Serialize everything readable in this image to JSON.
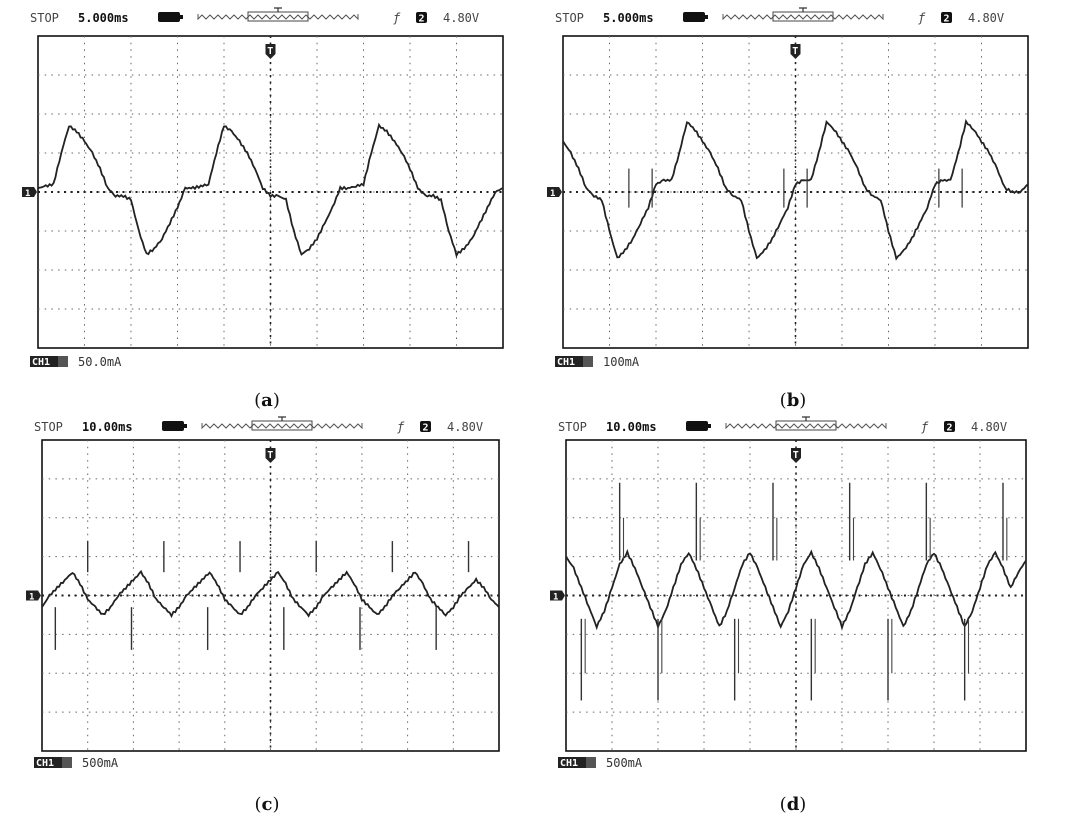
{
  "panels": [
    {
      "id": "a",
      "status": "STOP",
      "timebase": "5.000ms",
      "edge_symbol": "ƒ",
      "trigger_channel": "2",
      "trigger_level": "4.80V",
      "trigger_marker": "T",
      "channel_marker": "1",
      "channel_badge": "CH1",
      "channel_scale": "50.0mA",
      "caption": "a"
    },
    {
      "id": "b",
      "status": "STOP",
      "timebase": "5.000ms",
      "edge_symbol": "ƒ",
      "trigger_channel": "2",
      "trigger_level": "4.80V",
      "trigger_marker": "T",
      "channel_marker": "1",
      "channel_badge": "CH1",
      "channel_scale": "100mA",
      "caption": "b"
    },
    {
      "id": "c",
      "status": "STOP",
      "timebase": "10.00ms",
      "edge_symbol": "ƒ",
      "trigger_channel": "2",
      "trigger_level": "4.80V",
      "trigger_marker": "T",
      "channel_marker": "1",
      "channel_badge": "CH1",
      "channel_scale": "500mA",
      "caption": "c"
    },
    {
      "id": "d",
      "status": "STOP",
      "timebase": "10.00ms",
      "edge_symbol": "ƒ",
      "trigger_channel": "2",
      "trigger_level": "4.80V",
      "trigger_marker": "T",
      "channel_marker": "1",
      "channel_badge": "CH1",
      "channel_scale": "500mA",
      "caption": "d"
    }
  ],
  "chart_data": [
    {
      "type": "line",
      "panel": "a",
      "grid": true,
      "xlim": [
        -30,
        30
      ],
      "ylim": [
        -4,
        4
      ],
      "x_units": "ms",
      "y_units": "mA",
      "series": [
        {
          "x": [
            -30.0,
            -29.0,
            -28.0,
            -27.0,
            -26.0,
            -25.0,
            -24.0,
            -23.0,
            -22.0,
            -21.0,
            -20.0,
            -19.0,
            -18.0,
            -17.0,
            -16.0,
            -15.0,
            -14.0,
            -13.0,
            -12.0,
            -11.0,
            -10.0,
            -9.0,
            -8.0,
            -7.0,
            -6.0,
            -5.0,
            -4.0,
            -3.0,
            -2.0,
            -1.0,
            0.0,
            1.0,
            2.0,
            3.0,
            4.0,
            5.0,
            6.0,
            7.0,
            8.0,
            9.0,
            10.0,
            11.0,
            12.0,
            13.0,
            14.0,
            15.0,
            16.0,
            17.0,
            18.0,
            19.0,
            20.0,
            21.0,
            22.0,
            23.0,
            24.0,
            25.0,
            26.0,
            27.0,
            28.0,
            29.0,
            30.0
          ],
          "y": [
            0.1,
            0.15,
            0.2,
            1.0,
            1.7,
            1.55,
            1.3,
            1.0,
            0.6,
            0.1,
            -0.1,
            -0.1,
            -0.2,
            -1.0,
            -1.6,
            -1.45,
            -1.2,
            -0.8,
            -0.4,
            0.1,
            0.1,
            0.15,
            0.2,
            1.0,
            1.7,
            1.55,
            1.3,
            1.0,
            0.6,
            0.1,
            -0.1,
            -0.1,
            -0.2,
            -1.0,
            -1.6,
            -1.45,
            -1.2,
            -0.8,
            -0.4,
            0.1,
            0.1,
            0.15,
            0.2,
            1.0,
            1.7,
            1.55,
            1.3,
            1.0,
            0.6,
            0.1,
            -0.1,
            -0.1,
            -0.2,
            -1.0,
            -1.6,
            -1.45,
            -1.2,
            -0.8,
            -0.4,
            0.0,
            0.1
          ]
        }
      ]
    },
    {
      "type": "line",
      "panel": "b",
      "grid": true,
      "xlim": [
        -30,
        30
      ],
      "ylim": [
        -4,
        4
      ],
      "x_units": "ms",
      "y_units": "mA",
      "series": [
        {
          "x": [
            -30.0,
            -29.0,
            -28.0,
            -27.0,
            -26.0,
            -25.0,
            -24.0,
            -23.0,
            -22.0,
            -21.0,
            -20.0,
            -19.0,
            -18.0,
            -17.0,
            -16.0,
            -15.0,
            -14.0,
            -13.0,
            -12.0,
            -11.0,
            -10.0,
            -9.0,
            -8.0,
            -7.0,
            -6.0,
            -5.0,
            -4.0,
            -3.0,
            -2.0,
            -1.0,
            0.0,
            1.0,
            2.0,
            3.0,
            4.0,
            5.0,
            6.0,
            7.0,
            8.0,
            9.0,
            10.0,
            11.0,
            12.0,
            13.0,
            14.0,
            15.0,
            16.0,
            17.0,
            18.0,
            19.0,
            20.0,
            21.0,
            22.0,
            23.0,
            24.0,
            25.0,
            26.0,
            27.0,
            28.0,
            29.0,
            30.0
          ],
          "y": [
            1.3,
            1.0,
            0.6,
            0.1,
            -0.1,
            -0.2,
            -1.0,
            -1.7,
            -1.5,
            -1.2,
            -0.8,
            -0.4,
            0.2,
            0.3,
            0.3,
            1.0,
            1.8,
            1.6,
            1.3,
            1.0,
            0.6,
            0.1,
            -0.1,
            -0.2,
            -1.0,
            -1.7,
            -1.5,
            -1.2,
            -0.8,
            -0.4,
            0.2,
            0.3,
            0.3,
            1.0,
            1.8,
            1.6,
            1.3,
            1.0,
            0.6,
            0.1,
            -0.1,
            -0.2,
            -1.0,
            -1.7,
            -1.5,
            -1.2,
            -0.8,
            -0.4,
            0.2,
            0.3,
            0.3,
            1.0,
            1.8,
            1.6,
            1.3,
            1.0,
            0.6,
            0.1,
            0.0,
            0.0,
            0.2
          ]
        }
      ]
    },
    {
      "type": "line",
      "panel": "c",
      "grid": true,
      "xlim": [
        -60,
        60
      ],
      "ylim": [
        -4,
        4
      ],
      "x_units": "ms",
      "y_units": "mA",
      "series": [
        {
          "x": [
            -60,
            -58,
            -56,
            -54,
            -52,
            -50,
            -48,
            -46,
            -44,
            -42,
            -40,
            -38,
            -36,
            -34,
            -32,
            -30,
            -28,
            -26,
            -24,
            -22,
            -20,
            -18,
            -16,
            -14,
            -12,
            -10,
            -8,
            -6,
            -4,
            -2,
            0,
            2,
            4,
            6,
            8,
            10,
            12,
            14,
            16,
            18,
            20,
            22,
            24,
            26,
            28,
            30,
            32,
            34,
            36,
            38,
            40,
            42,
            44,
            46,
            48,
            50,
            52,
            54,
            56,
            58,
            60
          ],
          "y": [
            -0.3,
            0.0,
            0.2,
            0.4,
            0.6,
            0.3,
            -0.1,
            -0.3,
            -0.5,
            -0.3,
            0.0,
            0.2,
            0.4,
            0.6,
            0.3,
            -0.1,
            -0.3,
            -0.5,
            -0.3,
            0.0,
            0.2,
            0.4,
            0.6,
            0.3,
            -0.1,
            -0.3,
            -0.5,
            -0.3,
            0.0,
            0.2,
            0.4,
            0.6,
            0.3,
            -0.1,
            -0.3,
            -0.5,
            -0.3,
            0.0,
            0.2,
            0.4,
            0.6,
            0.3,
            -0.1,
            -0.3,
            -0.5,
            -0.3,
            0.0,
            0.2,
            0.4,
            0.6,
            0.3,
            -0.1,
            -0.3,
            -0.5,
            -0.3,
            0.0,
            0.2,
            0.4,
            0.2,
            -0.1,
            -0.3
          ]
        }
      ]
    },
    {
      "type": "line",
      "panel": "d",
      "grid": true,
      "xlim": [
        -60,
        60
      ],
      "ylim": [
        -4,
        4
      ],
      "x_units": "ms",
      "y_units": "mA",
      "series": [
        {
          "x": [
            -60,
            -58,
            -56,
            -54,
            -52,
            -50,
            -48,
            -46,
            -44,
            -42,
            -40,
            -38,
            -36,
            -34,
            -32,
            -30,
            -28,
            -26,
            -24,
            -22,
            -20,
            -18,
            -16,
            -14,
            -12,
            -10,
            -8,
            -6,
            -4,
            -2,
            0,
            2,
            4,
            6,
            8,
            10,
            12,
            14,
            16,
            18,
            20,
            22,
            24,
            26,
            28,
            30,
            32,
            34,
            36,
            38,
            40,
            42,
            44,
            46,
            48,
            50,
            52,
            54,
            56,
            58,
            60
          ],
          "y": [
            1.0,
            0.7,
            0.2,
            -0.3,
            -0.8,
            -0.4,
            0.2,
            0.8,
            1.1,
            0.7,
            0.2,
            -0.3,
            -0.8,
            -0.4,
            0.2,
            0.8,
            1.1,
            0.7,
            0.2,
            -0.3,
            -0.8,
            -0.4,
            0.2,
            0.8,
            1.1,
            0.7,
            0.2,
            -0.3,
            -0.8,
            -0.4,
            0.2,
            0.8,
            1.1,
            0.7,
            0.2,
            -0.3,
            -0.8,
            -0.4,
            0.2,
            0.8,
            1.1,
            0.7,
            0.2,
            -0.3,
            -0.8,
            -0.4,
            0.2,
            0.8,
            1.1,
            0.7,
            0.2,
            -0.3,
            -0.8,
            -0.4,
            0.2,
            0.8,
            1.1,
            0.7,
            0.2,
            0.6,
            0.9
          ]
        }
      ]
    }
  ]
}
